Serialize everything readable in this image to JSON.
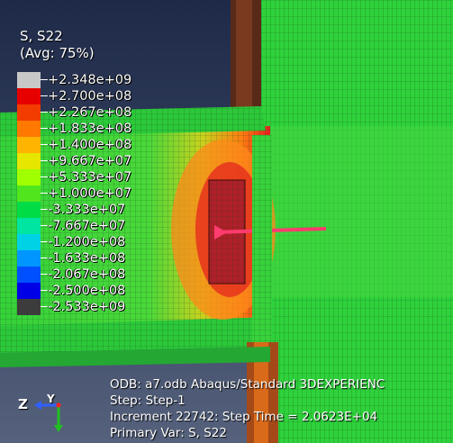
{
  "legend": {
    "variable": "S, S22",
    "averaging": "(Avg: 75%)",
    "entries": [
      {
        "label": "+2.348e+09",
        "color": "#c8c8c8"
      },
      {
        "label": "+2.700e+08",
        "color": "#e60000"
      },
      {
        "label": "+2.267e+08",
        "color": "#f23c00"
      },
      {
        "label": "+1.833e+08",
        "color": "#ff7800"
      },
      {
        "label": "+1.400e+08",
        "color": "#ffb400"
      },
      {
        "label": "+9.667e+07",
        "color": "#e6e600"
      },
      {
        "label": "+5.333e+07",
        "color": "#a0ff00"
      },
      {
        "label": "+1.000e+07",
        "color": "#50e61e"
      },
      {
        "label": "-3.333e+07",
        "color": "#00dc46"
      },
      {
        "label": "-7.667e+07",
        "color": "#00e6a0"
      },
      {
        "label": "-1.200e+08",
        "color": "#00d2e6"
      },
      {
        "label": "-1.633e+08",
        "color": "#0096ff"
      },
      {
        "label": "-2.067e+08",
        "color": "#0050ff"
      },
      {
        "label": "-2.500e+08",
        "color": "#0000e6"
      },
      {
        "label": "-2.533e+09",
        "color": "#3c3c3c"
      }
    ]
  },
  "info": {
    "odb": "ODB: a7.odb    Abaqus/Standard 3DEXPERIENC",
    "step": "Step: Step-1",
    "increment": "Increment  22742: Step Time =    2.0623E+04",
    "primary_var": "Primary Var: S, S22"
  },
  "triad": {
    "z_label": "Z",
    "y_label": "Y"
  },
  "colors": {
    "background": "#2a3552",
    "green": "#2bd336",
    "red": "#e02020",
    "orange": "#ff8c1a"
  }
}
